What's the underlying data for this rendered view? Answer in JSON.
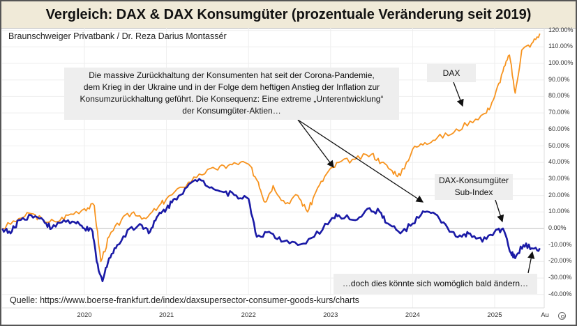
{
  "title": "Vergleich: DAX & DAX Konsumgüter (prozentuale Veränderung seit 2019)",
  "subtitle": "Braunschweiger Privatbank / Dr. Reza Darius Montassér",
  "source": "Quelle: https://www.boerse-frankfurt.de/index/daxsupersector-consumer-goods-kurs/charts",
  "annotations": {
    "main": [
      "Die massive Zurückhaltung der Konsumenten hat seit der Corona-Pandemie,",
      "dem Krieg in der Ukraine und in der Folge dem heftigen Anstieg der Inflation zur",
      "Konsumzurückhaltung  geführt. Die Konsequenz: Eine extreme „Unterentwicklung“",
      "der Konsumgüter-Aktien…"
    ],
    "dax": "DAX",
    "consumer": [
      "DAX-Konsumgüter",
      "Sub-Index"
    ],
    "outlook": "…doch dies könnte sich womöglich bald ändern…"
  },
  "colors": {
    "dax": "#f7931e",
    "consumer": "#1a1aa6"
  },
  "chart_data": {
    "type": "line",
    "ylim": [
      -45,
      122
    ],
    "yticks": [
      "120.00%",
      "110.00%",
      "100.00%",
      "90.00%",
      "80.00%",
      "70.00%",
      "60.00%",
      "50.00%",
      "40.00%",
      "30.00%",
      "20.00%",
      "10.00%",
      "0.00%",
      "-10.00%",
      "-20.00%",
      "-30.00%",
      "-40.00%"
    ],
    "ytick_values": [
      120,
      110,
      100,
      90,
      80,
      70,
      60,
      50,
      40,
      30,
      20,
      10,
      0,
      -10,
      -20,
      -30,
      -40
    ],
    "xlim": [
      2019.0,
      2025.75
    ],
    "xticks": [
      "2020",
      "2021",
      "2022",
      "2023",
      "2024",
      "2025",
      "Au"
    ],
    "xtick_values": [
      2020,
      2021,
      2022,
      2023,
      2024,
      2025,
      2025.6
    ],
    "series": [
      {
        "name": "DAX",
        "x": [
          2019.0,
          2019.2,
          2019.35,
          2019.5,
          2019.65,
          2019.8,
          2020.0,
          2020.12,
          2020.2,
          2020.3,
          2020.45,
          2020.6,
          2020.75,
          2020.9,
          2021.0,
          2021.2,
          2021.4,
          2021.6,
          2021.75,
          2021.9,
          2022.0,
          2022.12,
          2022.2,
          2022.3,
          2022.45,
          2022.6,
          2022.72,
          2022.82,
          2022.95,
          2023.1,
          2023.3,
          2023.5,
          2023.62,
          2023.75,
          2023.85,
          2024.0,
          2024.15,
          2024.3,
          2024.5,
          2024.7,
          2024.9,
          2025.0,
          2025.1,
          2025.18,
          2025.25,
          2025.33,
          2025.45,
          2025.55
        ],
        "values": [
          0,
          6,
          9,
          5,
          4,
          8,
          12,
          14,
          -20,
          -5,
          5,
          10,
          6,
          13,
          18,
          25,
          33,
          36,
          38,
          40,
          39,
          28,
          16,
          26,
          15,
          20,
          10,
          22,
          33,
          40,
          42,
          45,
          40,
          35,
          32,
          48,
          52,
          55,
          58,
          65,
          70,
          80,
          95,
          105,
          82,
          108,
          112,
          118
        ]
      },
      {
        "name": "DAX-Konsumgüter Sub-Index",
        "x": [
          2019.0,
          2019.1,
          2019.2,
          2019.35,
          2019.5,
          2019.6,
          2019.75,
          2019.9,
          2020.0,
          2020.1,
          2020.15,
          2020.22,
          2020.3,
          2020.4,
          2020.55,
          2020.7,
          2020.8,
          2020.9,
          2021.0,
          2021.1,
          2021.25,
          2021.4,
          2021.55,
          2021.7,
          2021.85,
          2022.0,
          2022.1,
          2022.25,
          2022.4,
          2022.6,
          2022.8,
          2023.0,
          2023.1,
          2023.3,
          2023.45,
          2023.6,
          2023.7,
          2023.85,
          2024.0,
          2024.15,
          2024.3,
          2024.45,
          2024.6,
          2024.7,
          2024.85,
          2025.0,
          2025.1,
          2025.2,
          2025.25,
          2025.35,
          2025.45,
          2025.55
        ],
        "values": [
          0,
          -3,
          5,
          8,
          5,
          0,
          5,
          3,
          0,
          -2,
          -20,
          -32,
          -18,
          -10,
          0,
          2,
          -2,
          8,
          12,
          18,
          25,
          30,
          25,
          22,
          20,
          18,
          -5,
          -2,
          -8,
          -10,
          -5,
          5,
          8,
          5,
          12,
          10,
          3,
          -3,
          3,
          10,
          8,
          -2,
          -5,
          -3,
          -8,
          -2,
          0,
          -15,
          -18,
          -10,
          -12,
          -12
        ]
      }
    ]
  }
}
